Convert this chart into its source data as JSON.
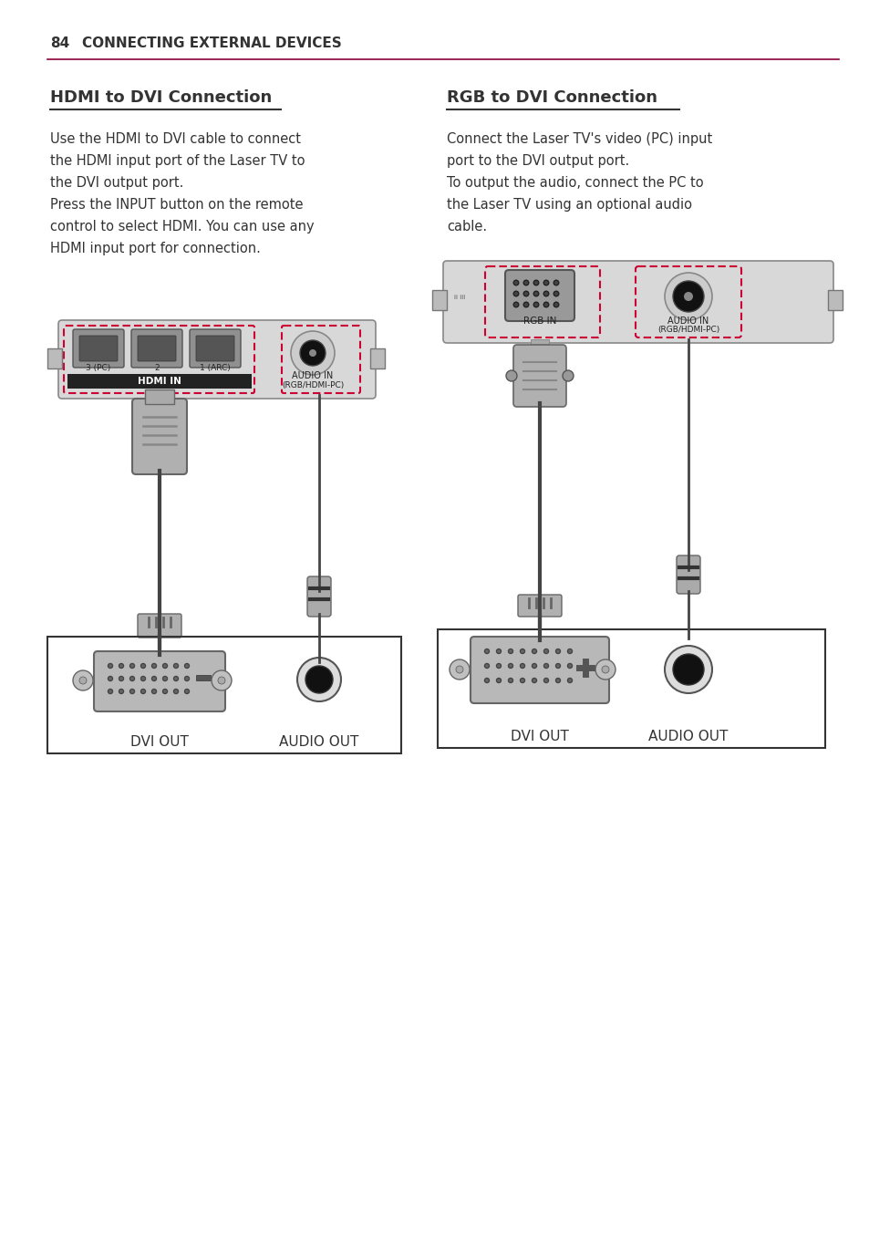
{
  "page_number": "84",
  "page_title": "CONNECTING EXTERNAL DEVICES",
  "title_color": "#8B0038",
  "text_color": "#333333",
  "background_color": "#ffffff",
  "left_section_title": "HDMI to DVI Connection",
  "right_section_title": "RGB to DVI Connection",
  "left_body_text": "Use the HDMI to DVI cable to connect\nthe HDMI input port of the Laser TV to\nthe DVI output port.\nPress the INPUT button on the remote\ncontrol to select HDMI. You can use any\nHDMI input port for connection.",
  "right_body_text": "Connect the Laser TV's video (PC) input\nport to the DVI output port.\nTo output the audio, connect the PC to\nthe Laser TV using an optional audio\ncable.",
  "left_dvi_label": "DVI OUT",
  "left_audio_label": "AUDIO OUT",
  "right_dvi_label": "DVI OUT",
  "right_audio_label": "AUDIO OUT",
  "hdmi_label": "HDMI IN",
  "audio_in_label": "AUDIO IN\n(RGB/HDMI-PC)",
  "rgb_in_label": "RGB IN",
  "hdmi_ports": [
    "3 (PC)",
    "2",
    "1 (ARC)"
  ],
  "dashed_border_color": "#cc0033",
  "cable_color": "#555555",
  "connector_fill": "#aaaaaa",
  "connector_dark": "#555555"
}
